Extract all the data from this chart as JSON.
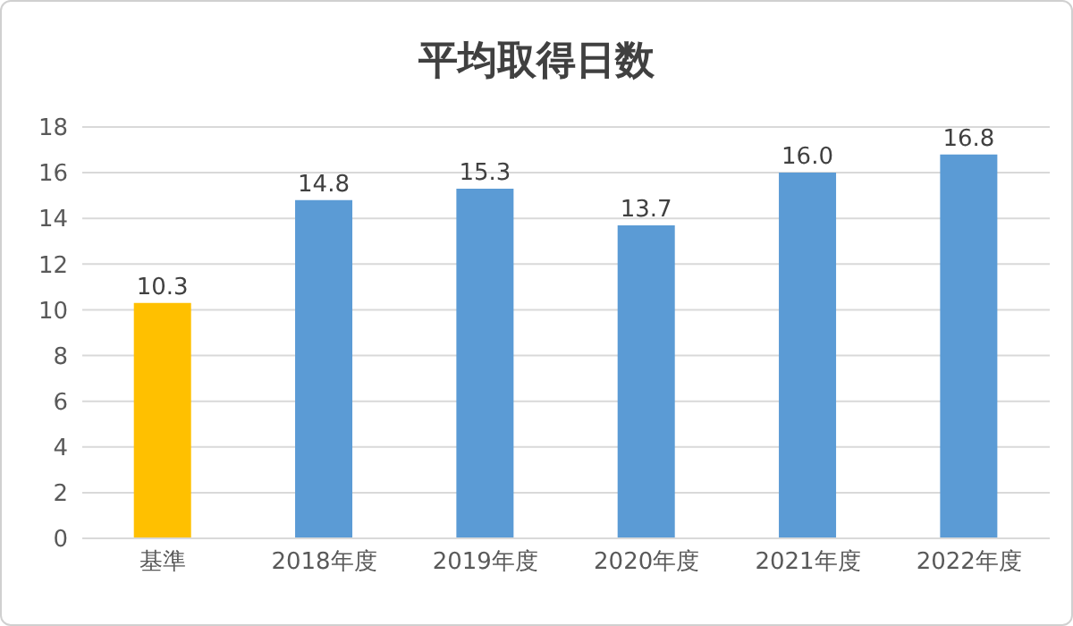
{
  "chart_data": {
    "type": "bar",
    "title": "平均取得日数",
    "categories": [
      "基準",
      "2018年度",
      "2019年度",
      "2020年度",
      "2021年度",
      "2022年度"
    ],
    "values": [
      10.3,
      14.8,
      15.3,
      13.7,
      16.0,
      16.8
    ],
    "value_labels": [
      "10.3",
      "14.8",
      "15.3",
      "13.7",
      "16.0",
      "16.8"
    ],
    "colors": [
      "#ffc000",
      "#5b9bd5",
      "#5b9bd5",
      "#5b9bd5",
      "#5b9bd5",
      "#5b9bd5"
    ],
    "ylim": [
      0,
      18
    ],
    "yticks": [
      0,
      2,
      4,
      6,
      8,
      10,
      12,
      14,
      16,
      18
    ],
    "grid": "y",
    "legend": false
  }
}
